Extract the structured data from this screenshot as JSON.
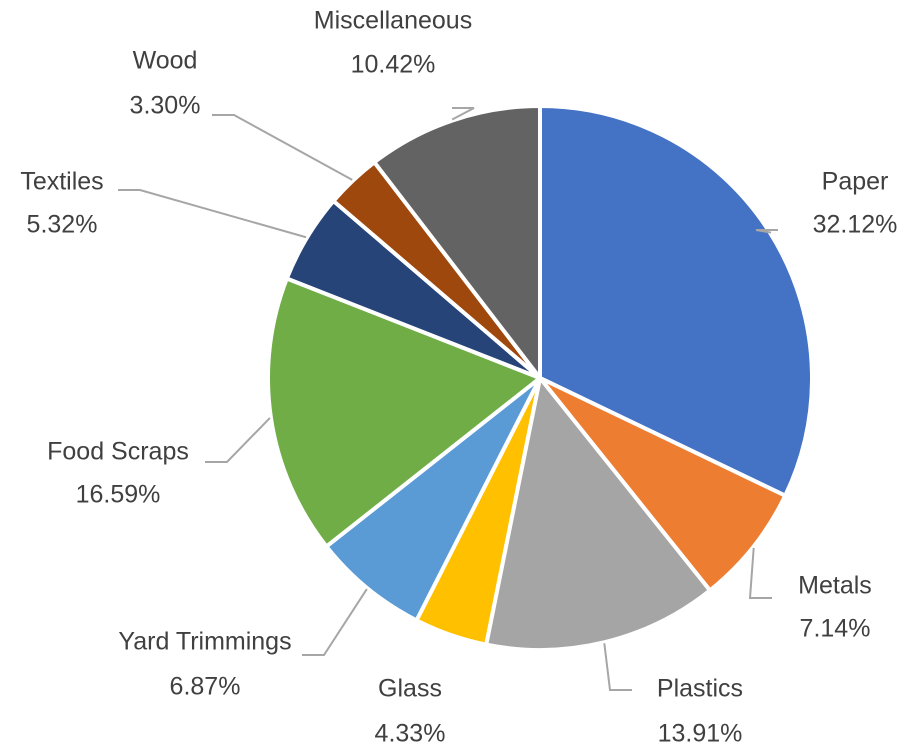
{
  "chart_data": {
    "type": "pie",
    "categories": [
      "Paper",
      "Metals",
      "Plastics",
      "Glass",
      "Yard Trimmings",
      "Food Scraps",
      "Textiles",
      "Wood",
      "Miscellaneous"
    ],
    "values": [
      32.12,
      7.14,
      13.91,
      4.33,
      6.87,
      16.59,
      5.32,
      3.3,
      10.42
    ],
    "value_labels": [
      "32.12%",
      "7.14%",
      "13.91%",
      "4.33%",
      "6.87%",
      "16.59%",
      "5.32%",
      "3.30%",
      "10.42%"
    ],
    "colors": [
      "#4472c4",
      "#ed7d31",
      "#a5a5a5",
      "#ffc000",
      "#5b9bd5",
      "#70ad47",
      "#264478",
      "#9e480e",
      "#636363"
    ]
  }
}
